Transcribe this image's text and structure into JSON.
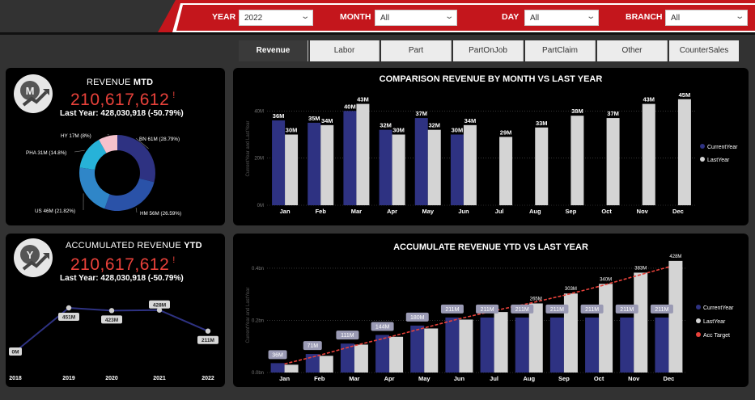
{
  "filters": {
    "year": {
      "label": "YEAR",
      "value": "2022"
    },
    "month": {
      "label": "MONTH",
      "value": "All"
    },
    "day": {
      "label": "DAY",
      "value": "All"
    },
    "branch": {
      "label": "BRANCH",
      "value": "All"
    }
  },
  "tabs": [
    "Revenue",
    "Labor",
    "Part",
    "PartOnJob",
    "PartClaim",
    "Other",
    "CounterSales"
  ],
  "active_tab": "Revenue",
  "mtd": {
    "icon_letter": "M",
    "title_prefix": "REVENUE ",
    "title_bold": "MTD",
    "value": "210,617,612",
    "alert": "!",
    "last_year": "Last Year: 428,030,918 (-50.79%)"
  },
  "ytd": {
    "icon_letter": "Y",
    "title_prefix": "ACCUMULATED REVENUE ",
    "title_bold": "YTD",
    "value": "210,617,612",
    "alert": "!",
    "last_year": "Last Year: 428,030,918 (-50.79%)"
  },
  "colors": {
    "current": "#2e3282",
    "last": "#d4d4d4",
    "target": "#e8413a",
    "accent": "#c4161c"
  },
  "chart_data": [
    {
      "id": "branch-donut",
      "type": "pie",
      "donut": true,
      "slices": [
        {
          "name": "BN",
          "value": 61,
          "label": "BN 61M (28.79%)",
          "color": "#2e3282"
        },
        {
          "name": "HM",
          "value": 56,
          "label": "HM 56M (26.59%)",
          "color": "#2a52a8"
        },
        {
          "name": "US",
          "value": 46,
          "label": "US 46M (21.82%)",
          "color": "#2f86c8"
        },
        {
          "name": "PHA",
          "value": 31,
          "label": "PHA 31M (14.8%)",
          "color": "#27b2d8"
        },
        {
          "name": "HY",
          "value": 17,
          "label": "HY 17M (8%)",
          "color": "#f5c1cc"
        }
      ]
    },
    {
      "id": "ytd-trend",
      "type": "line",
      "categories": [
        "2018",
        "2019",
        "2020",
        "2021",
        "2022"
      ],
      "values": [
        0,
        451,
        423,
        428,
        211
      ],
      "data_labels": [
        "0M",
        "451M",
        "423M",
        "428M",
        "211M"
      ]
    },
    {
      "id": "monthly",
      "type": "bar",
      "title": "COMPARISON REVENUE BY MONTH VS LAST YEAR",
      "ylabel": "CurrentYear and LastYear",
      "yticks": [
        "0M",
        "20M",
        "40M"
      ],
      "ylim": [
        0,
        48
      ],
      "categories": [
        "Jan",
        "Feb",
        "Mar",
        "Apr",
        "May",
        "Jun",
        "Jul",
        "Aug",
        "Sep",
        "Oct",
        "Nov",
        "Dec"
      ],
      "series": [
        {
          "name": "CurrentYear",
          "values": [
            36,
            35,
            40,
            32,
            37,
            30,
            null,
            null,
            null,
            null,
            null,
            null
          ],
          "labels": [
            "36M",
            "35M",
            "40M",
            "32M",
            "37M",
            "30M",
            "",
            "",
            "",
            "",
            "",
            ""
          ]
        },
        {
          "name": "LastYear",
          "values": [
            30,
            34,
            43,
            30,
            32,
            34,
            29,
            33,
            38,
            37,
            43,
            45
          ],
          "labels": [
            "30M",
            "34M",
            "43M",
            "30M",
            "32M",
            "34M",
            "29M",
            "33M",
            "38M",
            "37M",
            "43M",
            "45M"
          ]
        }
      ],
      "legend": "right"
    },
    {
      "id": "accumulated",
      "type": "bar",
      "title": "ACCUMULATE REVENUE YTD VS LAST YEAR",
      "ylabel": "CurrentYear and LastYear",
      "yticks": [
        "0.0bn",
        "0.2bn",
        "0.4bn"
      ],
      "ylim": [
        0,
        0.44
      ],
      "categories": [
        "Jan",
        "Feb",
        "Mar",
        "Apr",
        "May",
        "Jun",
        "Jul",
        "Aug",
        "Sep",
        "Oct",
        "Nov",
        "Dec"
      ],
      "series": [
        {
          "name": "CurrentYear",
          "values": [
            0.036,
            0.071,
            0.111,
            0.144,
            0.18,
            0.211,
            0.211,
            0.211,
            0.211,
            0.211,
            0.211,
            0.211
          ],
          "labels": [
            "36M",
            "71M",
            "111M",
            "144M",
            "180M",
            "211M",
            "211M",
            "211M",
            "211M",
            "211M",
            "211M",
            "211M"
          ]
        },
        {
          "name": "LastYear",
          "values": [
            0.03,
            0.064,
            0.107,
            0.137,
            0.169,
            0.203,
            0.232,
            0.265,
            0.303,
            0.34,
            0.383,
            0.428
          ],
          "labels": [
            "",
            "",
            "",
            "",
            "",
            "",
            "",
            "265M",
            "303M",
            "340M",
            "383M",
            "428M"
          ]
        },
        {
          "name": "Acc Target",
          "values": [
            0.033,
            0.066,
            0.103,
            0.136,
            0.171,
            0.206,
            0.237,
            0.265,
            0.296,
            0.33,
            0.368,
            0.405
          ],
          "labels": [
            "",
            "",
            "",
            "",
            "",
            "",
            "",
            "",
            "",
            "",
            "",
            ""
          ]
        }
      ],
      "legend": "right"
    }
  ]
}
